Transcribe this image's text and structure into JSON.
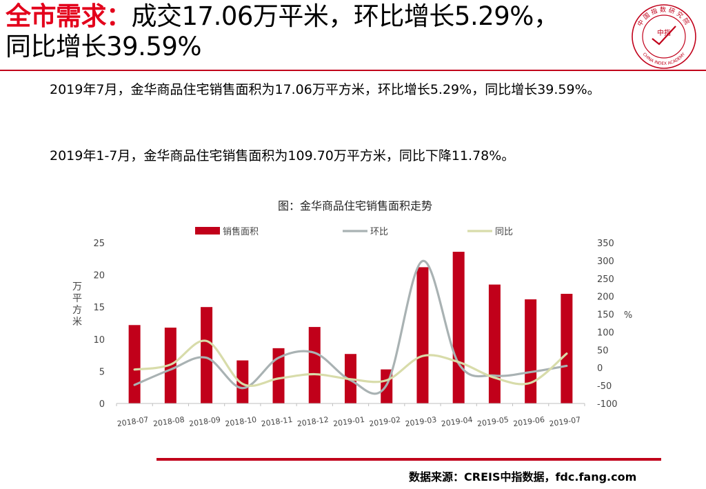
{
  "header": {
    "title_prefix": "全市需求：",
    "title_line1_rest": "成交17.06万平米，环比增长5.29%，",
    "title_line2": "同比增长39.59%"
  },
  "logo": {
    "top_text": "中国指数研究院",
    "center_text": "中指",
    "bottom_text": "CHINA INDEX ACADEMY",
    "color": "#c1001a"
  },
  "body": {
    "para1": "2019年7月，金华商品住宅销售面积为17.06万平方米，环比增长5.29%，同比增长39.59%。",
    "para2": "2019年1-7月，金华商品住宅销售面积为109.70万平方米，同比下降11.78%。"
  },
  "chart_data": {
    "type": "bar",
    "title": "图：金华商品住宅销售面积走势",
    "categories": [
      "2018-07",
      "2018-08",
      "2018-09",
      "2018-10",
      "2018-11",
      "2018-12",
      "2019-01",
      "2019-02",
      "2019-03",
      "2019-04",
      "2019-05",
      "2019-06",
      "2019-07"
    ],
    "series": [
      {
        "name": "销售面积",
        "kind": "bar",
        "axis": "left",
        "color": "#c1001a",
        "values": [
          12.2,
          11.8,
          15.0,
          6.7,
          8.6,
          11.9,
          7.7,
          5.3,
          21.2,
          23.6,
          18.5,
          16.2,
          17.06
        ]
      },
      {
        "name": "环比",
        "kind": "line",
        "axis": "right",
        "color": "#a9b2b3",
        "values": [
          -48,
          -5,
          28,
          -57,
          28,
          42,
          -35,
          -48,
          299,
          12,
          -22,
          -12,
          5.29
        ]
      },
      {
        "name": "同比",
        "kind": "line",
        "axis": "right",
        "color": "#d8dcaa",
        "values": [
          -5,
          9,
          75,
          -45,
          -30,
          -18,
          -32,
          -35,
          33,
          16,
          -28,
          -42,
          39.59
        ]
      }
    ],
    "ylabel_left": "万平方米",
    "ylabel_right": "%",
    "ylim_left": [
      0,
      25
    ],
    "yticks_left": [
      "0",
      "5",
      "10",
      "15",
      "20",
      "25"
    ],
    "ylim_right": [
      -100,
      350
    ],
    "yticks_right": [
      "-100",
      "-50",
      "0",
      "50",
      "100",
      "150",
      "200",
      "250",
      "300",
      "350"
    ],
    "legend_position": "top",
    "grid": false
  },
  "footer": {
    "source": "数据来源：CREIS中指数据，fdc.fang.com",
    "rule_color": "#c1001a"
  }
}
